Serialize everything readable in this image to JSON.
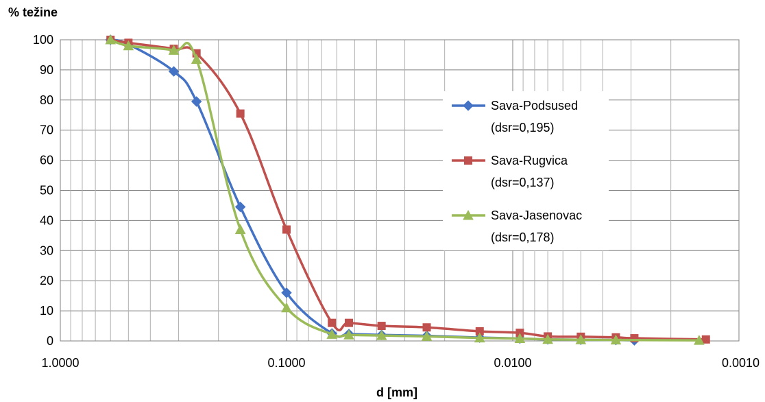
{
  "chart_data": {
    "type": "line",
    "title": "",
    "ylabel": "% težine",
    "xlabel": "d [mm]",
    "x_scale": "log",
    "x_reversed": true,
    "xlim": [
      1.0,
      0.001
    ],
    "ylim": [
      0,
      100
    ],
    "x_tick_labels": [
      "1.0000",
      "0.1000",
      "0.0100",
      "0.0010"
    ],
    "y_tick_labels": [
      "0",
      "10",
      "20",
      "30",
      "40",
      "50",
      "60",
      "70",
      "80",
      "90",
      "100"
    ],
    "grid": true,
    "legend_position": "right",
    "series": [
      {
        "name": "Sava-Podsused",
        "name_line2": "(dsr=0,195)",
        "color": "#4472C4",
        "marker": "diamond",
        "x": [
          0.6,
          0.5,
          0.315,
          0.25,
          0.16,
          0.1,
          0.063,
          0.053,
          0.038,
          0.024,
          0.014,
          0.0093,
          0.007,
          0.005,
          0.0035,
          0.0029
        ],
        "y": [
          100,
          98.5,
          89.5,
          79.5,
          44.5,
          16,
          2.5,
          2.3,
          2,
          1.7,
          1.1,
          0.8,
          0.5,
          0.4,
          0.3,
          0.2
        ]
      },
      {
        "name": "Sava-Rugvica",
        "name_line2": "(dsr=0,137)",
        "color": "#C0504D",
        "marker": "square",
        "x": [
          0.6,
          0.5,
          0.315,
          0.25,
          0.16,
          0.1,
          0.063,
          0.053,
          0.038,
          0.024,
          0.014,
          0.0093,
          0.007,
          0.005,
          0.0035,
          0.0029,
          0.0014
        ],
        "y": [
          100,
          99,
          97,
          95.5,
          75.5,
          37,
          6,
          6,
          5,
          4.5,
          3.2,
          2.7,
          1.5,
          1.4,
          1.2,
          0.9,
          0.5
        ]
      },
      {
        "name": "Sava-Jasenovac",
        "name_line2": "(dsr=0,178)",
        "color": "#9BBB59",
        "marker": "triangle",
        "x": [
          0.6,
          0.5,
          0.315,
          0.25,
          0.16,
          0.1,
          0.063,
          0.053,
          0.038,
          0.024,
          0.014,
          0.0093,
          0.007,
          0.005,
          0.0035,
          0.0015
        ],
        "y": [
          100,
          98,
          96.5,
          93.5,
          37,
          11,
          2.2,
          2,
          1.8,
          1.5,
          1,
          0.8,
          0.5,
          0.4,
          0.3,
          0.2
        ]
      }
    ]
  }
}
